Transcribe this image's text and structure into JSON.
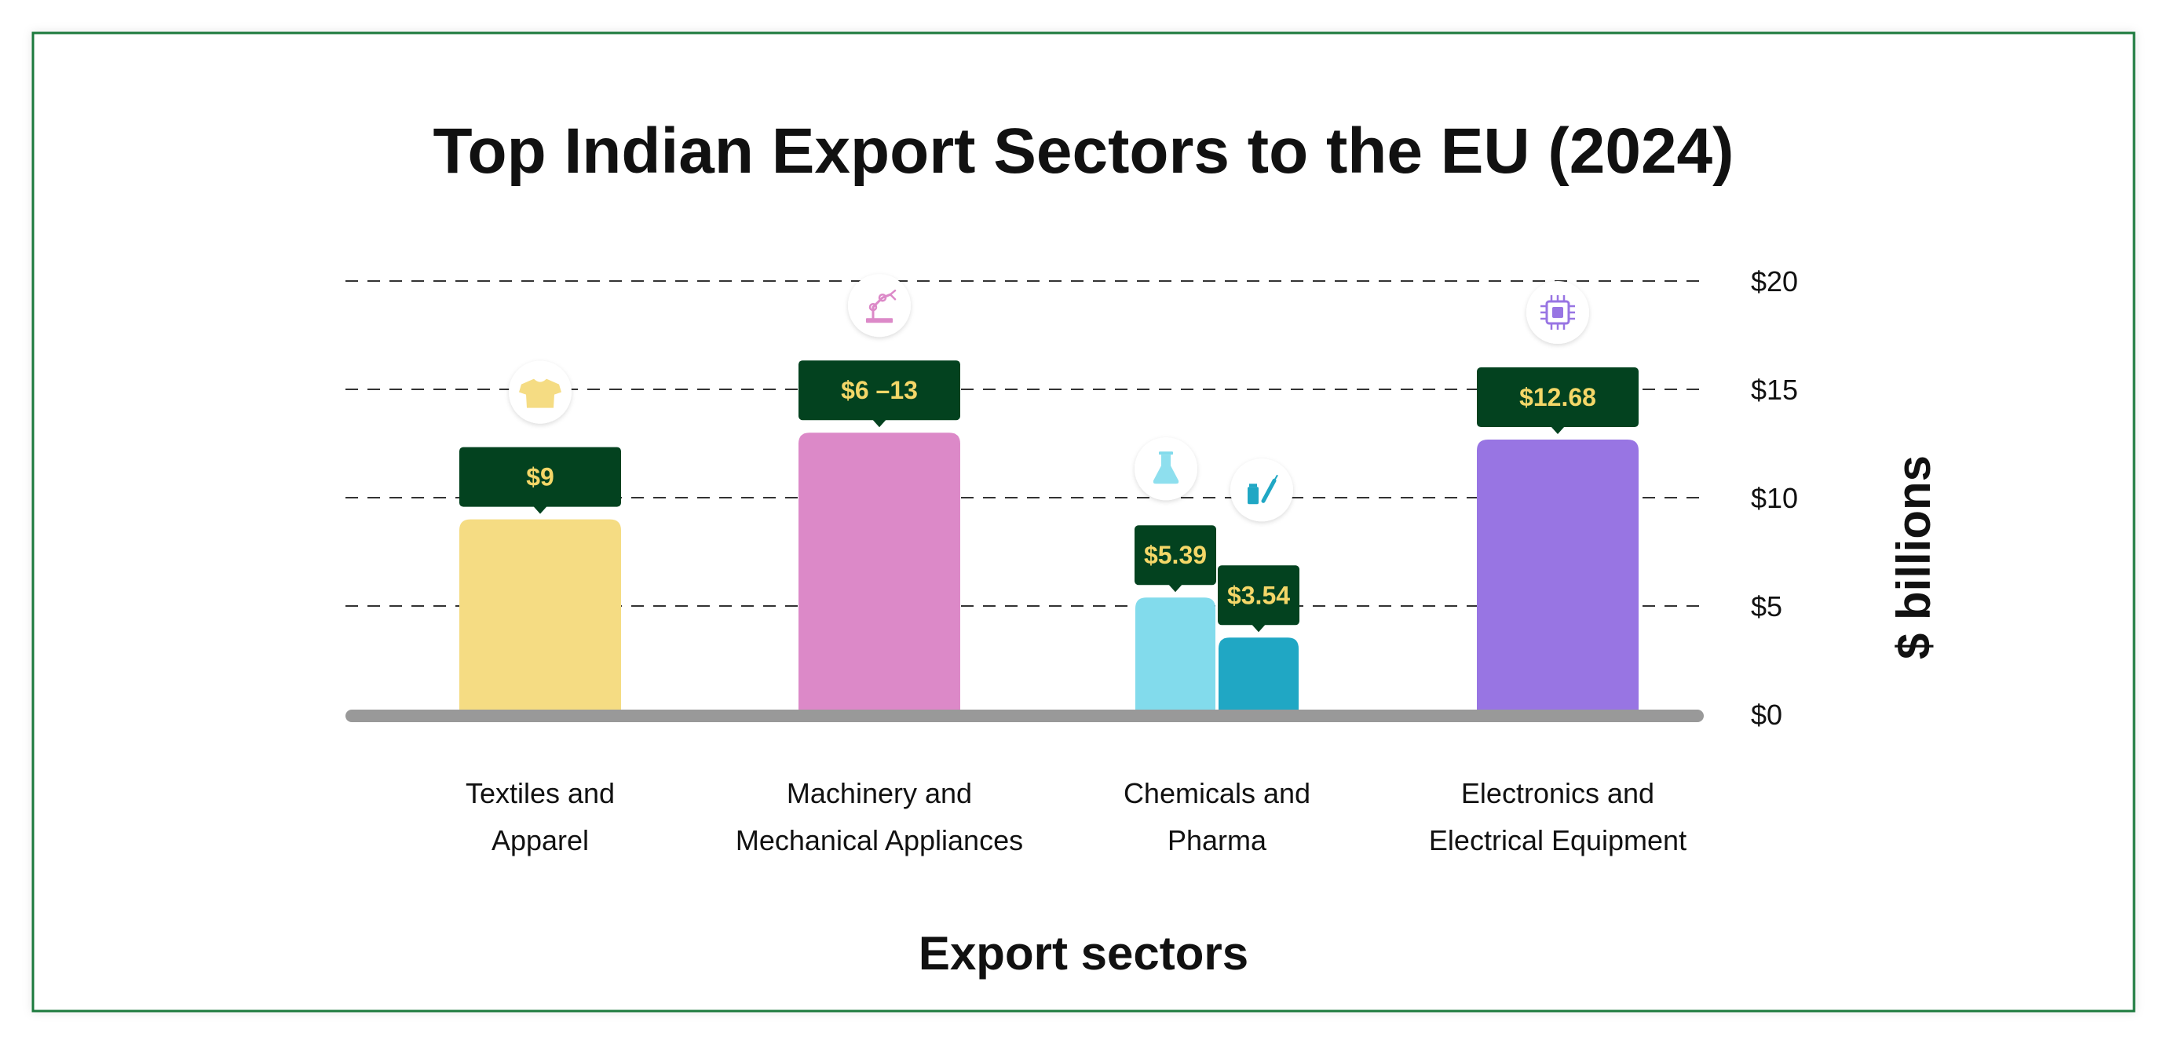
{
  "chart_data": {
    "type": "bar",
    "title": "Top Indian Export Sectors to the EU (2024)",
    "xlabel": "Export sectors",
    "ylabel": "$ billions",
    "ylim": [
      0,
      20
    ],
    "yticks": [
      {
        "value": 0,
        "label": "$0"
      },
      {
        "value": 5,
        "label": "$5"
      },
      {
        "value": 10,
        "label": "$10"
      },
      {
        "value": 15,
        "label": "$15"
      },
      {
        "value": 20,
        "label": "$20"
      }
    ],
    "grid": true,
    "grid_style": "dashed",
    "y_axis_position": "right",
    "categories": [
      {
        "lines": [
          "Textiles and",
          "Apparel"
        ]
      },
      {
        "lines": [
          "Machinery and",
          "Mechanical Appliances"
        ]
      },
      {
        "lines": [
          "Chemicals and",
          "Pharma"
        ]
      },
      {
        "lines": [
          "Electronics and",
          "Electrical Equipment"
        ]
      }
    ],
    "bars": [
      {
        "category_index": 0,
        "value": 9,
        "label": "$9",
        "color": "#F5DC83",
        "icon": "t-shirt-icon"
      },
      {
        "category_index": 1,
        "value": 13,
        "label": "$6 –13",
        "color": "#DC89C8",
        "icon": "robot-arm-icon"
      },
      {
        "category_index": 2,
        "value": 5.39,
        "label": "$5.39",
        "color": "#82DBEC",
        "icon": "flask-icon"
      },
      {
        "category_index": 2,
        "value": 3.54,
        "label": "$3.54",
        "color": "#20A7C4",
        "icon": "syringe-vial-icon"
      },
      {
        "category_index": 3,
        "value": 12.68,
        "label": "$12.68",
        "color": "#9875E3",
        "icon": "microchip-icon"
      }
    ],
    "colors": {
      "frame": "#1E7A3E",
      "label_box": "#03421F",
      "label_text": "#F4D768",
      "baseline": "#999999",
      "gridline": "#333333"
    }
  }
}
